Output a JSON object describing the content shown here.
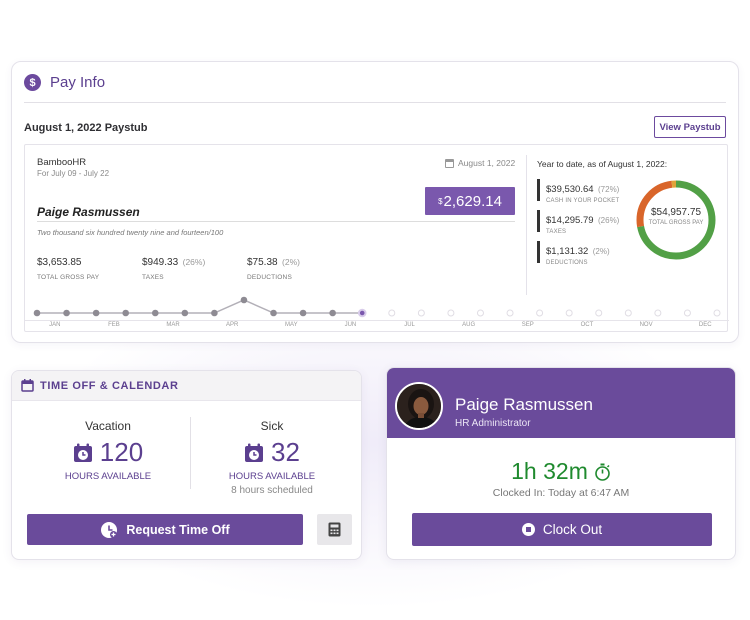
{
  "pay_info": {
    "title": "Pay Info",
    "icon": "dollar-icon",
    "paystub_title": "August 1, 2022 Paystub",
    "view_button": "View Paystub",
    "stub": {
      "company": "BambooHR",
      "period": "For July 09 - July 22",
      "date": "August 1, 2022",
      "currency_symbol": "$",
      "amount": "2,629.14",
      "employee": "Paige Rasmussen",
      "amount_words": "Two thousand six hundred twenty nine and fourteen/100",
      "gross_value": "$3,653.85",
      "gross_label": "TOTAL GROSS PAY",
      "taxes_value": "$949.33",
      "taxes_pct": "(26%)",
      "taxes_label": "TAXES",
      "deductions_value": "$75.38",
      "deductions_pct": "(2%)",
      "deductions_label": "DEDUCTIONS"
    },
    "ytd": {
      "title": "Year to date, as of August 1, 2022:",
      "items": [
        {
          "value": "$39,530.64",
          "pct": "(72%)",
          "label": "CASH IN YOUR POCKET",
          "color": "#52a046"
        },
        {
          "value": "$14,295.79",
          "pct": "(26%)",
          "label": "TAXES",
          "color": "#d9652a"
        },
        {
          "value": "$1,131.32",
          "pct": "(2%)",
          "label": "DEDUCTIONS",
          "color": "#e0a33a"
        }
      ],
      "total_value": "$54,957.75",
      "total_label": "TOTAL GROSS PAY",
      "shares": [
        0.72,
        0.26,
        0.02
      ]
    },
    "timeline": {
      "months": [
        "JAN",
        "FEB",
        "MAR",
        "APR",
        "MAY",
        "JUN",
        "JUL",
        "AUG",
        "SEP",
        "OCT",
        "NOV",
        "DEC"
      ],
      "active_points": 12,
      "highlighted_point": 7,
      "current_point": 11,
      "total_points": 24
    }
  },
  "time_off": {
    "title": "TIME OFF & CALENDAR",
    "vacation": {
      "name": "Vacation",
      "value": "120",
      "label": "HOURS AVAILABLE"
    },
    "sick": {
      "name": "Sick",
      "value": "32",
      "label": "HOURS AVAILABLE",
      "scheduled": "8 hours scheduled"
    },
    "request_button": "Request Time Off"
  },
  "profile": {
    "name": "Paige Rasmussen",
    "role": "HR Administrator",
    "timer": "1h 32m",
    "clocked_in": "Clocked In: Today at 6:47 AM",
    "clock_out_button": "Clock Out"
  },
  "colors": {
    "brand": "#6a4b9b",
    "timer_green": "#1f8a2e"
  }
}
